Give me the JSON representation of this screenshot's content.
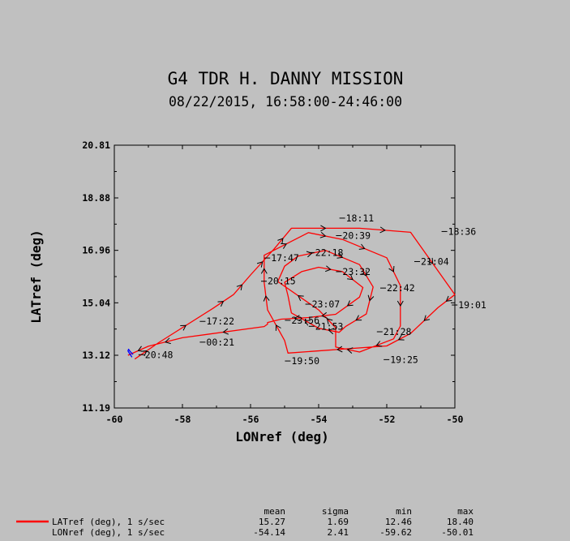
{
  "chart_data": {
    "type": "line",
    "title": "G4 TDR H. DANNY MISSION",
    "subtitle": "08/22/2015, 16:58:00-24:46:00",
    "xlabel": "LONref (deg)",
    "ylabel": "LATref (deg)",
    "xlim": [
      -60,
      -50
    ],
    "ylim": [
      11.19,
      20.81
    ],
    "x_ticks": [
      "-60",
      "-58",
      "-56",
      "-54",
      "-52",
      "-50"
    ],
    "y_ticks": [
      "20.81",
      "18.88",
      "16.96",
      "15.04",
      "13.12",
      "11.19"
    ],
    "grid": false,
    "series": [
      {
        "color": "#ff0000",
        "x": [
          -59.4,
          -58.7,
          -57.1,
          -56.5,
          -56.0,
          -55.3,
          -54.8,
          -52.8,
          -51.3,
          -50.0,
          -50.5,
          -51.3,
          -52.0,
          -54.9,
          -55.0,
          -55.5,
          -55.6,
          -55.6,
          -54.3,
          -53.3,
          -52.0,
          -51.6,
          -51.6,
          -51.8,
          -52.8,
          -53.5,
          -53.5,
          -54.0,
          -55.2,
          -55.0,
          -54.6,
          -53.8,
          -52.8,
          -52.4,
          -52.6,
          -53.2,
          -53.4,
          -54.0,
          -54.8,
          -54.9,
          -55.0,
          -54.5,
          -54.0,
          -53.3,
          -52.7,
          -52.8,
          -53.5,
          -54.3,
          -55.1,
          -55.5,
          -55.5,
          -55.6,
          -58.0,
          -59.0,
          -59.6
        ],
        "y": [
          12.98,
          13.58,
          14.84,
          15.34,
          16.06,
          17.02,
          17.77,
          17.77,
          17.62,
          15.34,
          14.86,
          13.92,
          13.46,
          13.2,
          13.66,
          14.78,
          15.79,
          16.78,
          17.61,
          17.36,
          16.69,
          15.67,
          14.19,
          13.72,
          13.24,
          13.42,
          14.13,
          14.78,
          15.82,
          16.38,
          16.75,
          16.96,
          16.44,
          15.62,
          14.63,
          14.18,
          13.96,
          14.11,
          14.67,
          15.3,
          15.79,
          16.18,
          16.34,
          16.18,
          15.6,
          15.25,
          14.62,
          14.5,
          14.44,
          14.32,
          14.26,
          14.17,
          13.76,
          13.45,
          13.12
        ]
      },
      {
        "color": "#0000ff",
        "x": [
          -59.48,
          -59.55,
          -59.6,
          -59.58,
          -59.53,
          -59.45
        ],
        "y": [
          13.05,
          13.18,
          13.28,
          13.34,
          13.25,
          13.15
        ]
      }
    ],
    "time_labels": [
      {
        "text": "20:48",
        "x": -59.1,
        "y": 13.14
      },
      {
        "text": "17:22",
        "x": -57.3,
        "y": 14.36
      },
      {
        "text": "00:21",
        "x": -57.3,
        "y": 13.6
      },
      {
        "text": "17:47",
        "x": -55.4,
        "y": 16.68
      },
      {
        "text": "20:15",
        "x": -55.5,
        "y": 15.83
      },
      {
        "text": "23:56",
        "x": -54.8,
        "y": 14.4
      },
      {
        "text": "19:50",
        "x": -54.8,
        "y": 12.91
      },
      {
        "text": "18:11",
        "x": -53.2,
        "y": 18.14
      },
      {
        "text": "20:39",
        "x": -53.3,
        "y": 17.5
      },
      {
        "text": "22:18",
        "x": -54.1,
        "y": 16.88
      },
      {
        "text": "23:32",
        "x": -53.3,
        "y": 16.18
      },
      {
        "text": "22:42",
        "x": -52.0,
        "y": 15.58
      },
      {
        "text": "23:07",
        "x": -54.2,
        "y": 14.99
      },
      {
        "text": "21:53",
        "x": -54.1,
        "y": 14.18
      },
      {
        "text": "21:28",
        "x": -52.1,
        "y": 13.98
      },
      {
        "text": "19:25",
        "x": -51.9,
        "y": 12.96
      },
      {
        "text": "18:36",
        "x": -50.2,
        "y": 17.65
      },
      {
        "text": "21:04",
        "x": -51.0,
        "y": 16.55
      },
      {
        "text": "19:01",
        "x": -49.9,
        "y": 14.96
      }
    ],
    "stats": {
      "headers": [
        "mean",
        "sigma",
        "min",
        "max"
      ],
      "rows": [
        {
          "label": "LATref (deg), 1 s/sec",
          "mean": "15.27",
          "sigma": "1.69",
          "min": "12.46",
          "max": "18.40",
          "color": "#ff0000"
        },
        {
          "label": "LONref (deg), 1 s/sec",
          "mean": "-54.14",
          "sigma": "2.41",
          "min": "-59.62",
          "max": "-50.01"
        }
      ]
    }
  }
}
